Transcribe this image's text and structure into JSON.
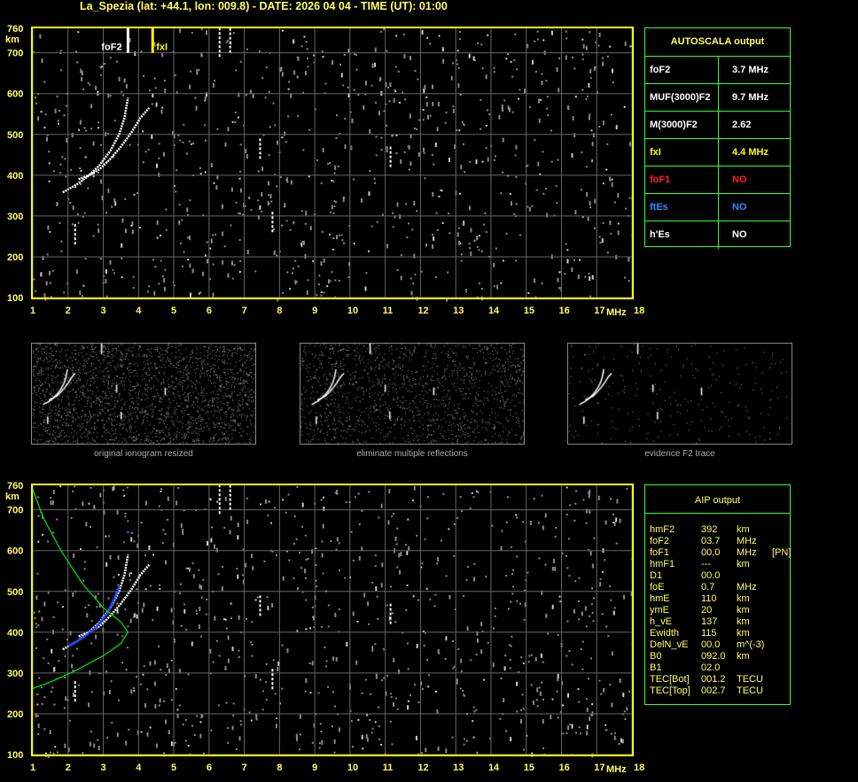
{
  "header": {
    "title": "La_Spezia (lat: +44.1, lon: 009.8) - DATE: 2026 04 04 - TIME (UT): 01:00"
  },
  "colors": {
    "axis": "#ffff00",
    "grid": "#666666",
    "trace": "#ffffff",
    "fxi": "#ffff00",
    "model": "#00dd00",
    "aip_trace": "#2244ff",
    "box": "#33ff33"
  },
  "autoscala": {
    "title": "AUTOSCALA output",
    "rows": [
      {
        "key": "foF2",
        "value": "3.7 MHz",
        "color": "#ffffff"
      },
      {
        "key": "MUF(3000)F2",
        "value": "9.7 MHz",
        "color": "#ffffff"
      },
      {
        "key": "M(3000)F2",
        "value": "2.62",
        "color": "#ffffff"
      },
      {
        "key": "fxI",
        "value": "4.4 MHz",
        "color": "#ffff00"
      },
      {
        "key": "foF1",
        "value": "NO",
        "color": "#ff2020"
      },
      {
        "key": "ftEs",
        "value": "NO",
        "color": "#3388ff"
      },
      {
        "key": "h'Es",
        "value": "NO",
        "color": "#ffffff"
      }
    ]
  },
  "aip": {
    "title": "AIP output",
    "rows": [
      [
        "hmF2",
        "392",
        "km",
        ""
      ],
      [
        "foF2",
        "03.7",
        "MHz",
        ""
      ],
      [
        "foF1",
        "00.0",
        "MHz",
        "[PN]"
      ],
      [
        "hmF1",
        "---",
        "km",
        ""
      ],
      [
        "D1",
        "00.0",
        "",
        ""
      ],
      [
        "foE",
        "0.7",
        "MHz",
        ""
      ],
      [
        "hmE",
        "110",
        "km",
        ""
      ],
      [
        "ymE",
        "20",
        "km",
        ""
      ],
      [
        "h_vE",
        "137",
        "km",
        ""
      ],
      [
        "Ewidth",
        "115",
        "km",
        ""
      ],
      [
        "DelN_vE",
        "00.0",
        "m^(-3)",
        ""
      ],
      [
        "B0",
        "092.0",
        "km",
        ""
      ],
      [
        "B1",
        "02.0",
        "",
        ""
      ],
      [
        "TEC[Bot]",
        "001.2",
        "TECU",
        ""
      ],
      [
        "TEC[Top]",
        "002.7",
        "TECU",
        ""
      ]
    ]
  },
  "thumbnails": [
    {
      "caption": "original ionogram resized"
    },
    {
      "caption": "eliminate multiple reflections"
    },
    {
      "caption": "evidence F2 trace"
    }
  ],
  "chart_data": [
    {
      "type": "scatter",
      "title": "",
      "xlabel": "MHz",
      "ylabel": "km",
      "xlim": [
        1,
        18
      ],
      "ylim": [
        100,
        760
      ],
      "xticks": [
        "1",
        "2",
        "3",
        "4",
        "5",
        "6",
        "7",
        "8",
        "9",
        "10",
        "11",
        "12",
        "13",
        "14",
        "15",
        "16",
        "17",
        "18"
      ],
      "yticks": [
        "100",
        "200",
        "300",
        "400",
        "500",
        "600",
        "700",
        "760"
      ],
      "grid": true,
      "markers": [
        {
          "label": "foF2",
          "x": 3.7
        },
        {
          "label": "fxI",
          "x": 4.4
        }
      ],
      "series": [
        {
          "name": "",
          "kind": "o-trace",
          "points": [
            [
              1.85,
              358
            ],
            [
              2.0,
              365
            ],
            [
              2.3,
              380
            ],
            [
              2.6,
              400
            ],
            [
              2.9,
              425
            ],
            [
              3.2,
              460
            ],
            [
              3.45,
              500
            ],
            [
              3.6,
              540
            ],
            [
              3.7,
              590
            ]
          ]
        },
        {
          "name": "",
          "kind": "x-trace",
          "points": [
            [
              2.3,
              390
            ],
            [
              2.6,
              400
            ],
            [
              2.9,
              415
            ],
            [
              3.2,
              440
            ],
            [
              3.5,
              470
            ],
            [
              3.8,
              505
            ],
            [
              4.05,
              540
            ],
            [
              4.3,
              565
            ]
          ]
        }
      ]
    },
    {
      "type": "scatter",
      "title": "",
      "xlabel": "MHz",
      "ylabel": "km",
      "xlim": [
        1,
        18
      ],
      "ylim": [
        100,
        760
      ],
      "xticks": [
        "1",
        "2",
        "3",
        "4",
        "5",
        "6",
        "7",
        "8",
        "9",
        "10",
        "11",
        "12",
        "13",
        "14",
        "15",
        "16",
        "17",
        "18"
      ],
      "yticks": [
        "100",
        "200",
        "300",
        "400",
        "500",
        "600",
        "700",
        "760"
      ],
      "grid": true,
      "series": [
        {
          "name": "",
          "kind": "o-trace",
          "points": [
            [
              1.85,
              358
            ],
            [
              2.0,
              365
            ],
            [
              2.3,
              380
            ],
            [
              2.6,
              400
            ],
            [
              2.9,
              425
            ],
            [
              3.2,
              460
            ],
            [
              3.45,
              500
            ],
            [
              3.6,
              540
            ],
            [
              3.7,
              590
            ]
          ]
        },
        {
          "name": "",
          "kind": "x-trace",
          "points": [
            [
              2.3,
              390
            ],
            [
              2.6,
              400
            ],
            [
              2.9,
              415
            ],
            [
              3.2,
              440
            ],
            [
              3.5,
              470
            ],
            [
              3.8,
              505
            ],
            [
              4.05,
              540
            ],
            [
              4.3,
              565
            ]
          ]
        },
        {
          "name": "",
          "kind": "aip-fit",
          "points": [
            [
              2.0,
              366
            ],
            [
              2.4,
              385
            ],
            [
              2.8,
              412
            ],
            [
              3.1,
              445
            ],
            [
              3.3,
              480
            ],
            [
              3.45,
              512
            ]
          ]
        },
        {
          "name": "",
          "kind": "model-profile",
          "points": [
            [
              1.0,
              750
            ],
            [
              1.3,
              680
            ],
            [
              1.8,
              600
            ],
            [
              2.4,
              520
            ],
            [
              3.0,
              460
            ],
            [
              3.5,
              425
            ],
            [
              3.7,
              400
            ],
            [
              3.5,
              372
            ],
            [
              3.0,
              342
            ],
            [
              2.2,
              305
            ],
            [
              1.5,
              278
            ],
            [
              1.0,
              262
            ]
          ]
        }
      ]
    }
  ]
}
